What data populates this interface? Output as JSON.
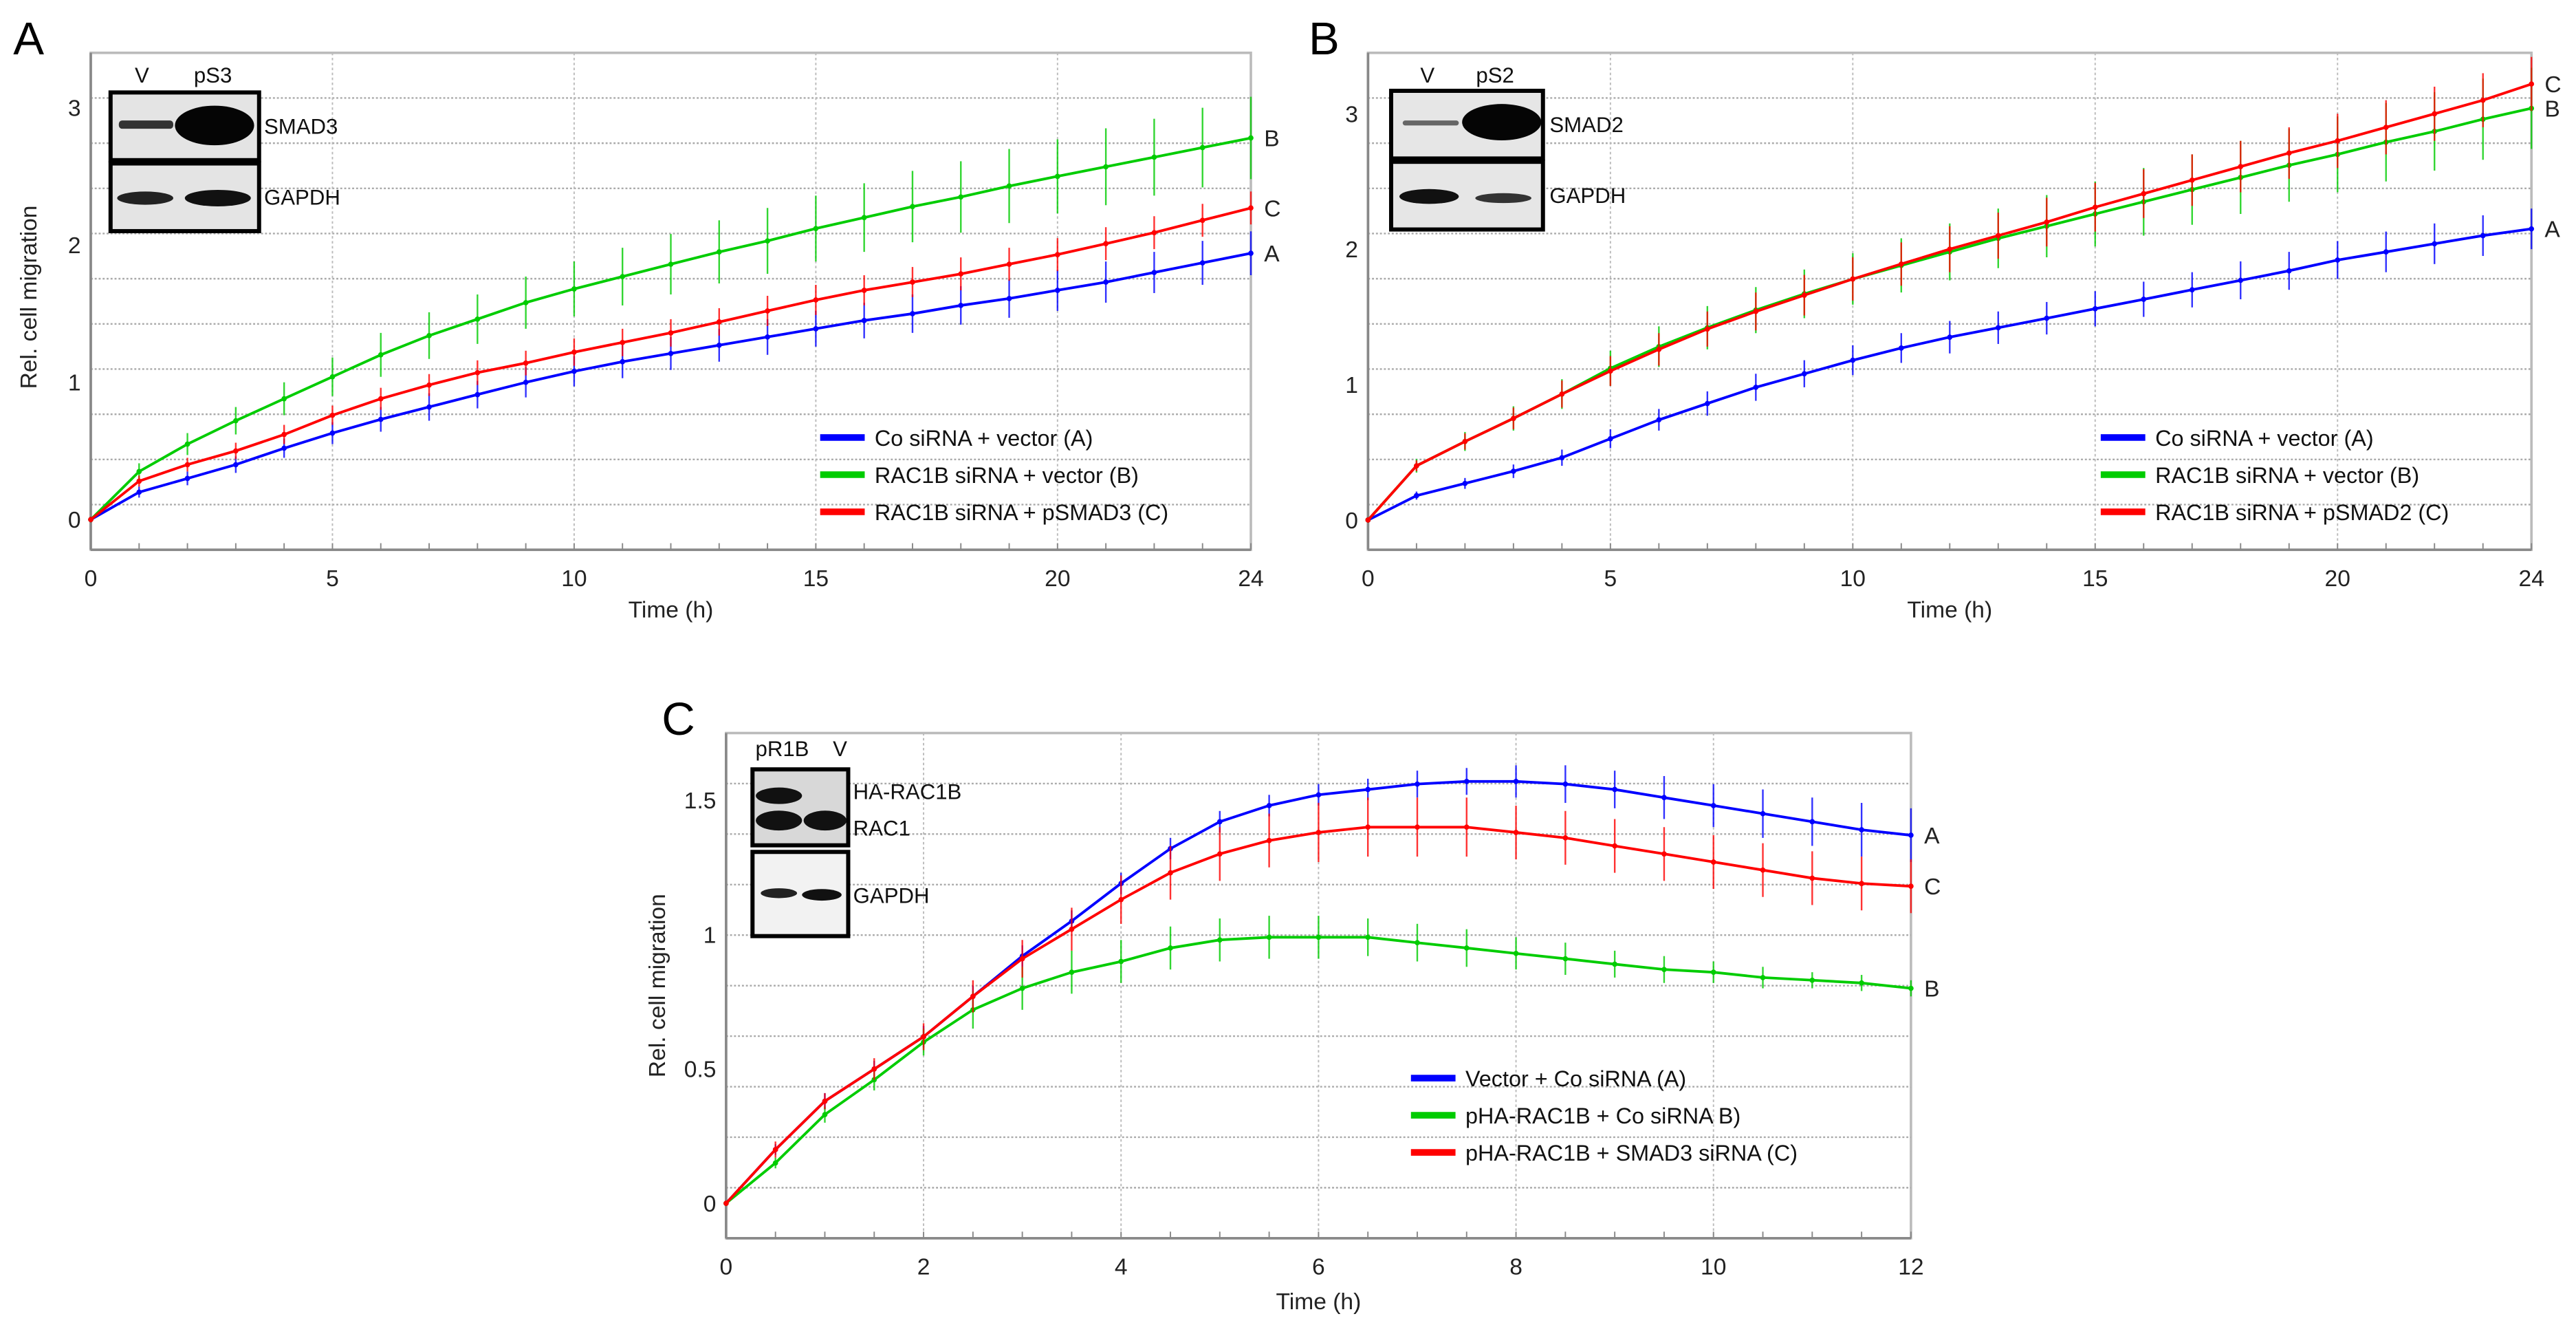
{
  "colors": {
    "A": "#0000ff",
    "B": "#00cc00",
    "C": "#ff0000"
  },
  "chart_data": [
    {
      "type": "line",
      "panel_label": "A",
      "xlabel": "Time (h)",
      "ylabel": "Rel. cell migration",
      "xlim": [
        0,
        24
      ],
      "ylim": [
        -0.22,
        3.4
      ],
      "xticks": [
        "0",
        "5",
        "10",
        "15",
        "20",
        "24"
      ],
      "xtick_values": [
        0,
        5,
        10,
        15,
        20,
        24
      ],
      "yticks": [
        "0",
        "1",
        "2",
        "3"
      ],
      "ytick_values": [
        0,
        1,
        2,
        3
      ],
      "grid": true,
      "legend_position": "bottom-right",
      "inset": {
        "lanes": [
          "V",
          "pS3"
        ],
        "bands": [
          "SMAD3",
          "GAPDH"
        ]
      },
      "x": [
        0,
        1,
        2,
        3,
        4,
        5,
        6,
        7,
        8,
        9,
        10,
        11,
        12,
        13,
        14,
        15,
        16,
        17,
        18,
        19,
        20,
        21,
        22,
        23,
        24
      ],
      "series": [
        {
          "name": "Co siRNA + vector (A)",
          "end_label": "A",
          "key": "A",
          "values": [
            0,
            0.2,
            0.3,
            0.4,
            0.52,
            0.63,
            0.73,
            0.82,
            0.91,
            1.0,
            1.08,
            1.15,
            1.21,
            1.27,
            1.33,
            1.39,
            1.45,
            1.5,
            1.56,
            1.61,
            1.67,
            1.73,
            1.8,
            1.87,
            1.94
          ],
          "error": [
            0.02,
            0.04,
            0.05,
            0.06,
            0.07,
            0.08,
            0.09,
            0.1,
            0.1,
            0.11,
            0.11,
            0.12,
            0.12,
            0.12,
            0.13,
            0.13,
            0.13,
            0.14,
            0.14,
            0.14,
            0.15,
            0.15,
            0.15,
            0.16,
            0.16
          ]
        },
        {
          "name": "RAC1B siRNA + vector (B)",
          "end_label": "B",
          "key": "B",
          "values": [
            0,
            0.35,
            0.55,
            0.72,
            0.88,
            1.04,
            1.2,
            1.34,
            1.46,
            1.58,
            1.68,
            1.77,
            1.86,
            1.95,
            2.03,
            2.12,
            2.2,
            2.28,
            2.35,
            2.43,
            2.5,
            2.57,
            2.64,
            2.71,
            2.78
          ],
          "error": [
            0.02,
            0.06,
            0.08,
            0.1,
            0.12,
            0.14,
            0.16,
            0.17,
            0.18,
            0.19,
            0.2,
            0.21,
            0.22,
            0.23,
            0.24,
            0.24,
            0.25,
            0.26,
            0.26,
            0.27,
            0.27,
            0.28,
            0.28,
            0.29,
            0.3
          ]
        },
        {
          "name": "RAC1B siRNA + pSMAD3 (C)",
          "end_label": "C",
          "key": "C",
          "values": [
            0,
            0.28,
            0.4,
            0.5,
            0.62,
            0.76,
            0.88,
            0.98,
            1.07,
            1.14,
            1.22,
            1.29,
            1.36,
            1.44,
            1.52,
            1.6,
            1.67,
            1.73,
            1.79,
            1.86,
            1.93,
            2.01,
            2.09,
            2.18,
            2.27
          ],
          "error": [
            0.02,
            0.04,
            0.05,
            0.06,
            0.07,
            0.07,
            0.08,
            0.08,
            0.09,
            0.09,
            0.1,
            0.1,
            0.1,
            0.1,
            0.11,
            0.11,
            0.11,
            0.11,
            0.12,
            0.12,
            0.12,
            0.12,
            0.12,
            0.12,
            0.12
          ]
        }
      ]
    },
    {
      "type": "line",
      "panel_label": "B",
      "xlabel": "Time (h)",
      "ylabel": "",
      "xlim": [
        0,
        24
      ],
      "ylim": [
        -0.22,
        3.45
      ],
      "xticks": [
        "0",
        "5",
        "10",
        "15",
        "20",
        "24"
      ],
      "xtick_values": [
        0,
        5,
        10,
        15,
        20,
        24
      ],
      "yticks": [
        "0",
        "1",
        "2",
        "3"
      ],
      "ytick_values": [
        0,
        1,
        2,
        3
      ],
      "grid": true,
      "legend_position": "bottom-right",
      "inset": {
        "lanes": [
          "V",
          "pS2"
        ],
        "bands": [
          "SMAD2",
          "GAPDH"
        ]
      },
      "x": [
        0,
        1,
        2,
        3,
        4,
        5,
        6,
        7,
        8,
        9,
        10,
        11,
        12,
        13,
        14,
        15,
        16,
        17,
        18,
        19,
        20,
        21,
        22,
        23,
        24
      ],
      "series": [
        {
          "name": "Co siRNA + vector (A)",
          "end_label": "A",
          "key": "A",
          "values": [
            0,
            0.18,
            0.27,
            0.36,
            0.46,
            0.6,
            0.74,
            0.86,
            0.98,
            1.08,
            1.18,
            1.27,
            1.35,
            1.42,
            1.49,
            1.56,
            1.63,
            1.7,
            1.77,
            1.84,
            1.92,
            1.98,
            2.04,
            2.1,
            2.15
          ],
          "error": [
            0.02,
            0.03,
            0.04,
            0.05,
            0.06,
            0.07,
            0.08,
            0.09,
            0.1,
            0.1,
            0.11,
            0.11,
            0.12,
            0.12,
            0.12,
            0.13,
            0.13,
            0.13,
            0.14,
            0.14,
            0.14,
            0.15,
            0.15,
            0.15,
            0.15
          ]
        },
        {
          "name": "RAC1B siRNA + vector (B)",
          "end_label": "B",
          "key": "B",
          "values": [
            0,
            0.4,
            0.58,
            0.75,
            0.93,
            1.12,
            1.28,
            1.42,
            1.55,
            1.67,
            1.78,
            1.88,
            1.98,
            2.08,
            2.17,
            2.26,
            2.35,
            2.44,
            2.53,
            2.62,
            2.7,
            2.79,
            2.87,
            2.96,
            3.04
          ],
          "error": [
            0.02,
            0.05,
            0.07,
            0.09,
            0.11,
            0.13,
            0.15,
            0.16,
            0.17,
            0.18,
            0.19,
            0.2,
            0.21,
            0.22,
            0.23,
            0.24,
            0.25,
            0.26,
            0.27,
            0.27,
            0.28,
            0.29,
            0.29,
            0.3,
            0.3
          ]
        },
        {
          "name": "RAC1B siRNA + pSMAD2 (C)",
          "end_label": "C",
          "key": "C",
          "values": [
            0,
            0.4,
            0.58,
            0.75,
            0.93,
            1.1,
            1.26,
            1.41,
            1.54,
            1.66,
            1.78,
            1.89,
            2.0,
            2.1,
            2.2,
            2.31,
            2.41,
            2.51,
            2.61,
            2.71,
            2.8,
            2.9,
            3.0,
            3.1,
            3.22
          ],
          "error": [
            0.02,
            0.04,
            0.06,
            0.08,
            0.1,
            0.11,
            0.12,
            0.13,
            0.14,
            0.15,
            0.16,
            0.16,
            0.17,
            0.17,
            0.18,
            0.18,
            0.18,
            0.19,
            0.19,
            0.19,
            0.2,
            0.2,
            0.2,
            0.2,
            0.2
          ]
        }
      ]
    },
    {
      "type": "line",
      "panel_label": "C",
      "xlabel": "Time (h)",
      "ylabel": "Rel. cell migration",
      "xlim": [
        0,
        12
      ],
      "ylim": [
        -0.13,
        1.75
      ],
      "xticks": [
        "0",
        "2",
        "4",
        "6",
        "8",
        "10",
        "12"
      ],
      "xtick_values": [
        0,
        2,
        4,
        6,
        8,
        10,
        12
      ],
      "yticks": [
        "0",
        "0.5",
        "1",
        "1.5"
      ],
      "ytick_values": [
        0,
        0.5,
        1,
        1.5
      ],
      "grid": true,
      "legend_position": "bottom-right",
      "inset": {
        "lanes": [
          "pR1B",
          "V"
        ],
        "bands": [
          "HA-RAC1B",
          "RAC1",
          "GAPDH"
        ]
      },
      "x": [
        0,
        0.5,
        1,
        1.5,
        2,
        2.5,
        3,
        3.5,
        4,
        4.5,
        5,
        5.5,
        6,
        6.5,
        7,
        7.5,
        8,
        8.5,
        9,
        9.5,
        10,
        10.5,
        11,
        11.5,
        12
      ],
      "series": [
        {
          "name": "Vector + Co siRNA (A)",
          "end_label": "A",
          "key": "A",
          "values": [
            0,
            0.2,
            0.38,
            0.5,
            0.62,
            0.77,
            0.92,
            1.05,
            1.19,
            1.32,
            1.42,
            1.48,
            1.52,
            1.54,
            1.56,
            1.57,
            1.57,
            1.56,
            1.54,
            1.51,
            1.48,
            1.45,
            1.42,
            1.39,
            1.37
          ],
          "error": [
            0.01,
            0.02,
            0.03,
            0.03,
            0.04,
            0.04,
            0.04,
            0.04,
            0.04,
            0.04,
            0.04,
            0.04,
            0.04,
            0.04,
            0.05,
            0.05,
            0.06,
            0.07,
            0.07,
            0.08,
            0.08,
            0.09,
            0.09,
            0.1,
            0.1
          ]
        },
        {
          "name": "pHA-RAC1B + Co siRNA B)",
          "end_label": "B",
          "key": "B",
          "values": [
            0,
            0.15,
            0.33,
            0.46,
            0.6,
            0.72,
            0.8,
            0.86,
            0.9,
            0.95,
            0.98,
            0.99,
            0.99,
            0.99,
            0.97,
            0.95,
            0.93,
            0.91,
            0.89,
            0.87,
            0.86,
            0.84,
            0.83,
            0.82,
            0.8
          ],
          "error": [
            0.01,
            0.02,
            0.03,
            0.04,
            0.05,
            0.07,
            0.08,
            0.08,
            0.08,
            0.08,
            0.08,
            0.08,
            0.08,
            0.07,
            0.07,
            0.07,
            0.06,
            0.06,
            0.05,
            0.05,
            0.04,
            0.04,
            0.03,
            0.03,
            0.03
          ]
        },
        {
          "name": "pHA-RAC1B + SMAD3 siRNA (C)",
          "end_label": "C",
          "key": "C",
          "values": [
            0,
            0.2,
            0.38,
            0.5,
            0.62,
            0.77,
            0.91,
            1.02,
            1.13,
            1.23,
            1.3,
            1.35,
            1.38,
            1.4,
            1.4,
            1.4,
            1.38,
            1.36,
            1.33,
            1.3,
            1.27,
            1.24,
            1.21,
            1.19,
            1.18
          ],
          "error": [
            0.01,
            0.03,
            0.03,
            0.04,
            0.05,
            0.06,
            0.07,
            0.08,
            0.09,
            0.1,
            0.1,
            0.1,
            0.11,
            0.11,
            0.11,
            0.11,
            0.1,
            0.1,
            0.1,
            0.1,
            0.1,
            0.1,
            0.1,
            0.1,
            0.1
          ]
        }
      ]
    }
  ]
}
